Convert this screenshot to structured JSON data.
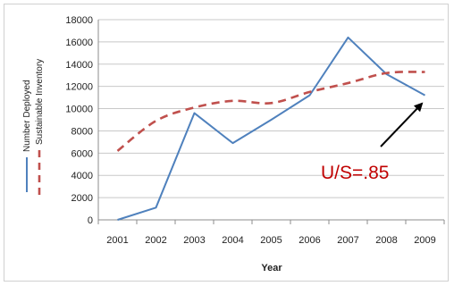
{
  "chart_data": {
    "type": "line",
    "title": "",
    "xlabel": "Year",
    "ylabel": "",
    "categories": [
      "2001",
      "2002",
      "2003",
      "2004",
      "2005",
      "2006",
      "2007",
      "2008",
      "2009"
    ],
    "ylim": [
      0,
      18000
    ],
    "yticks": [
      "0",
      "2000",
      "4000",
      "6000",
      "8000",
      "10000",
      "12000",
      "14000",
      "16000",
      "18000"
    ],
    "grid": "horizontal",
    "legend_position": "left",
    "series": [
      {
        "name": "Number Deployed",
        "style": "solid",
        "color": "#4f81bd",
        "values": [
          0,
          1100,
          9600,
          6900,
          9000,
          11200,
          16400,
          13100,
          11200
        ]
      },
      {
        "name": "Sustainable Inventory",
        "style": "dashed",
        "color": "#c0504d",
        "values": [
          6200,
          8900,
          10100,
          10700,
          10500,
          11500,
          12300,
          13200,
          13300
        ]
      }
    ],
    "annotations": [
      {
        "text": "U/S=.85",
        "color": "#c00000",
        "arrow": "points to 2009 Number Deployed value"
      }
    ]
  }
}
